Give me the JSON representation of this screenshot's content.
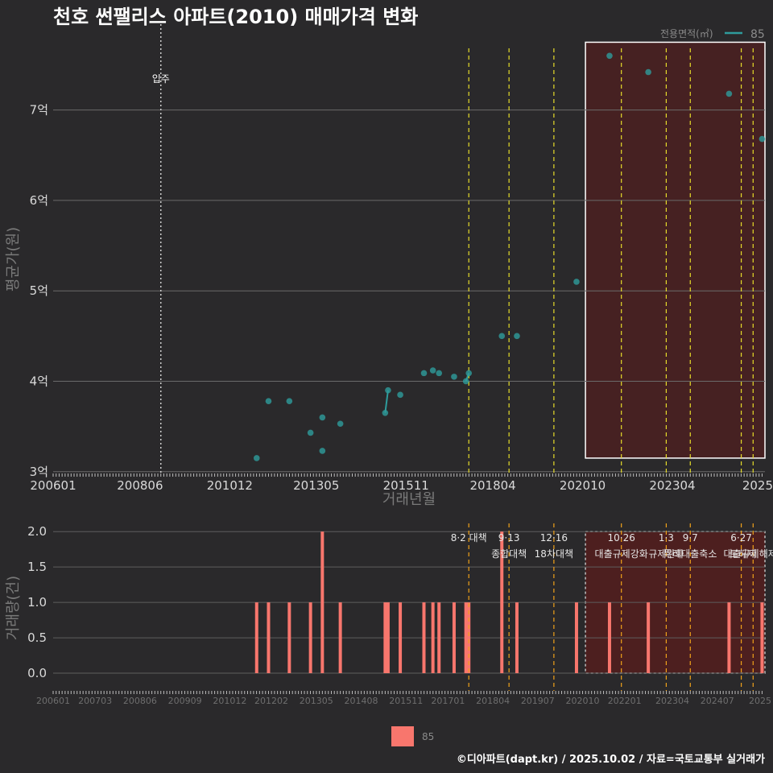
{
  "chart_data": [
    {
      "type": "scatter",
      "title": "천호 썬팰리스 아파트(2010) 매매가격 변화",
      "xlabel": "거래년월",
      "ylabel": "평균가(원)",
      "x_ticks": [
        "200601",
        "200806",
        "201012",
        "201305",
        "201511",
        "201804",
        "202010",
        "202304",
        "2025"
      ],
      "y_ticks": [
        "3억",
        "4억",
        "5억",
        "6억",
        "7억"
      ],
      "ylim": [
        2.98,
        7.95
      ],
      "xlim": [
        2006.0,
        2025.83
      ],
      "legend": {
        "title": "전용면적(㎡)",
        "entries": [
          "85"
        ],
        "position": "top-right"
      },
      "series": [
        {
          "name": "85",
          "color": "#2e9c9c",
          "points": [
            {
              "x": 2011.67,
              "y": 3.15
            },
            {
              "x": 2012.0,
              "y": 3.78
            },
            {
              "x": 2012.58,
              "y": 3.78
            },
            {
              "x": 2013.17,
              "y": 3.43
            },
            {
              "x": 2013.5,
              "y": 3.6
            },
            {
              "x": 2013.5,
              "y": 3.23
            },
            {
              "x": 2014.0,
              "y": 3.53
            },
            {
              "x": 2015.25,
              "y": 3.65
            },
            {
              "x": 2015.33,
              "y": 3.9
            },
            {
              "x": 2015.67,
              "y": 3.85
            },
            {
              "x": 2016.33,
              "y": 4.09
            },
            {
              "x": 2016.58,
              "y": 4.12
            },
            {
              "x": 2016.75,
              "y": 4.09
            },
            {
              "x": 2017.17,
              "y": 4.05
            },
            {
              "x": 2017.5,
              "y": 4.0
            },
            {
              "x": 2017.58,
              "y": 4.09
            },
            {
              "x": 2018.5,
              "y": 4.5
            },
            {
              "x": 2018.92,
              "y": 4.5
            },
            {
              "x": 2020.58,
              "y": 5.1
            },
            {
              "x": 2021.5,
              "y": 7.6
            },
            {
              "x": 2022.58,
              "y": 7.42
            },
            {
              "x": 2024.83,
              "y": 7.18
            },
            {
              "x": 2025.75,
              "y": 6.68
            }
          ],
          "lines": [
            [
              {
                "x": 2015.25,
                "y": 3.65
              },
              {
                "x": 2015.33,
                "y": 3.9
              }
            ],
            [
              {
                "x": 2017.5,
                "y": 4.0
              },
              {
                "x": 2017.58,
                "y": 4.09
              }
            ]
          ]
        }
      ],
      "annotations": [
        {
          "x": 2009.0,
          "label": "입주",
          "style": "dotted"
        }
      ],
      "highlight": {
        "x_start": 2020.83,
        "x_end": 2025.83,
        "y_start": 3.15,
        "y_end": 7.75
      }
    },
    {
      "type": "bar",
      "xlabel": "",
      "ylabel": "거래량(건)",
      "x_ticks": [
        "200601",
        "200703",
        "200806",
        "200909",
        "201012",
        "201202",
        "201305",
        "201408",
        "201511",
        "201701",
        "201804",
        "201907",
        "202010",
        "202201",
        "202304",
        "202407",
        "2025"
      ],
      "y_ticks": [
        "0.0",
        "0.5",
        "1.0",
        "1.5",
        "2.0"
      ],
      "ylim": [
        0,
        2.0
      ],
      "xlim": [
        2006.0,
        2025.83
      ],
      "legend": {
        "entries": [
          "85"
        ],
        "position": "bottom"
      },
      "bars": [
        {
          "x": 2011.67,
          "y": 1
        },
        {
          "x": 2012.0,
          "y": 1
        },
        {
          "x": 2012.58,
          "y": 1
        },
        {
          "x": 2013.17,
          "y": 1
        },
        {
          "x": 2013.5,
          "y": 2
        },
        {
          "x": 2014.0,
          "y": 1
        },
        {
          "x": 2015.25,
          "y": 1
        },
        {
          "x": 2015.33,
          "y": 1
        },
        {
          "x": 2015.67,
          "y": 1
        },
        {
          "x": 2016.33,
          "y": 1
        },
        {
          "x": 2016.58,
          "y": 1
        },
        {
          "x": 2016.75,
          "y": 1
        },
        {
          "x": 2017.17,
          "y": 1
        },
        {
          "x": 2017.5,
          "y": 1
        },
        {
          "x": 2017.58,
          "y": 1
        },
        {
          "x": 2018.5,
          "y": 2
        },
        {
          "x": 2018.92,
          "y": 1
        },
        {
          "x": 2020.58,
          "y": 1
        },
        {
          "x": 2021.5,
          "y": 1
        },
        {
          "x": 2022.58,
          "y": 1
        },
        {
          "x": 2024.83,
          "y": 1
        },
        {
          "x": 2025.75,
          "y": 1
        }
      ],
      "policies": [
        {
          "x": 2017.58,
          "line1": "8·2 대책",
          "line2": ""
        },
        {
          "x": 2018.7,
          "line1": "9·13",
          "line2": "종합대책"
        },
        {
          "x": 2019.95,
          "line1": "12·16",
          "line2": "18차대책"
        },
        {
          "x": 2021.83,
          "line1": "10·26",
          "line2": "대출규제강화"
        },
        {
          "x": 2023.08,
          "line1": "1·3",
          "line2": "규제완화"
        },
        {
          "x": 2023.75,
          "line1": "9·7",
          "line2": "특례대출축소"
        },
        {
          "x": 2025.17,
          "line1": "6·27",
          "line2": "대출규제"
        },
        {
          "x": 2025.5,
          "line1": "",
          "line2": "토허제 해제"
        }
      ],
      "highlight": {
        "x_start": 2020.83,
        "x_end": 2025.83,
        "y_start": 0,
        "y_end": 2.0
      }
    }
  ],
  "credit": "©디아파트(dapt.kr) / 2025.10.02 / 자료=국토교통부 실거래가"
}
